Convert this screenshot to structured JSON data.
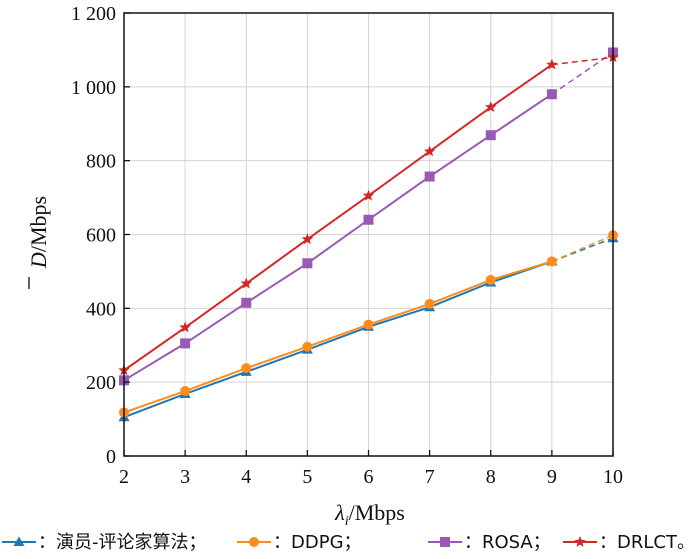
{
  "chart_data": {
    "type": "line",
    "title": "",
    "xlabel": "λ",
    "xlabel_sub": "i",
    "xlabel_unit": "/Mbps",
    "ylabel": "D",
    "ylabel_unit": "/Mbps",
    "x": [
      2,
      3,
      4,
      5,
      6,
      7,
      8,
      9,
      10
    ],
    "xlim": [
      2,
      10
    ],
    "ylim": [
      0,
      1200
    ],
    "x_ticks": [
      "2",
      "3",
      "4",
      "5",
      "6",
      "7",
      "8",
      "9",
      "10"
    ],
    "y_ticks": [
      {
        "value": 0,
        "label": "0"
      },
      {
        "value": 200,
        "label": "200"
      },
      {
        "value": 400,
        "label": "400"
      },
      {
        "value": 600,
        "label": "600"
      },
      {
        "value": 800,
        "label": "800"
      },
      {
        "value": 1000,
        "label": "1 000"
      },
      {
        "value": 1200,
        "label": "1 200"
      }
    ],
    "grid": true,
    "legend_position": "bottom",
    "series": [
      {
        "name": "演员-评论家算法",
        "legend_label": "：演员-评论家算法；",
        "color": "#1f77b4",
        "marker": "triangle",
        "values": [
          105,
          168,
          228,
          288,
          350,
          403,
          470,
          527,
          590
        ]
      },
      {
        "name": "DDPG",
        "legend_label": "：DDPG；",
        "color": "#ff8c1a",
        "marker": "circle",
        "values": [
          118,
          176,
          238,
          296,
          356,
          412,
          477,
          527,
          598
        ]
      },
      {
        "name": "ROSA",
        "legend_label": "：ROSA；",
        "color": "#9b59b6",
        "marker": "square",
        "values": [
          205,
          305,
          415,
          522,
          640,
          757,
          869,
          980,
          1093
        ]
      },
      {
        "name": "DRLCT",
        "legend_label": "：DRLCT。",
        "color": "#d62728",
        "marker": "star",
        "values": [
          232,
          348,
          467,
          587,
          705,
          825,
          945,
          1060,
          1080
        ]
      }
    ],
    "dashed_from_x": 9
  }
}
